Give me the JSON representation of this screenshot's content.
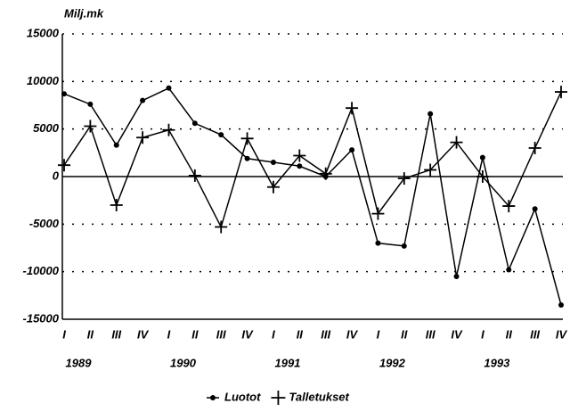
{
  "chart_data": {
    "type": "line",
    "y_axis_label": "Milj.mk",
    "categories": [
      "I",
      "II",
      "III",
      "IV",
      "I",
      "II",
      "III",
      "IV",
      "I",
      "II",
      "III",
      "IV",
      "I",
      "II",
      "III",
      "IV",
      "I",
      "II",
      "III",
      "IV"
    ],
    "groups": [
      "1989",
      "1990",
      "1991",
      "1992",
      "1993"
    ],
    "series": [
      {
        "name": "Luotot",
        "color": "#000000",
        "marker": "dot",
        "values": [
          8700,
          7600,
          3300,
          8000,
          9300,
          5600,
          4400,
          1900,
          1500,
          1100,
          0,
          2800,
          -7000,
          -7300,
          6600,
          -10500,
          2000,
          -9800,
          -3400,
          -13500
        ]
      },
      {
        "name": "Talletukset",
        "color": "#000000",
        "marker": "plus",
        "values": [
          1200,
          5300,
          -3000,
          4100,
          4900,
          100,
          -5300,
          4000,
          -1100,
          2200,
          300,
          7200,
          -3900,
          -200,
          700,
          3600,
          0,
          -3100,
          3000,
          8900
        ]
      }
    ],
    "ylim": [
      -15000,
      15000
    ],
    "yticks": [
      -15000,
      -10000,
      -5000,
      0,
      5000,
      10000,
      15000
    ],
    "grid": true,
    "legend": "bottom"
  }
}
